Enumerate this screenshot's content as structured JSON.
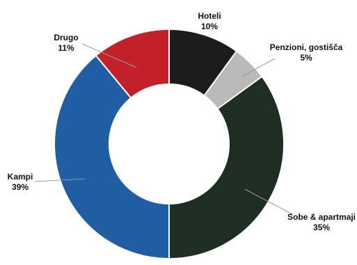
{
  "chart_data": {
    "type": "pie",
    "donut": true,
    "title": "",
    "legend": "none",
    "slices": [
      {
        "label": "Hoteli",
        "value": 10,
        "value_label": "10%",
        "color": "#1c1c1c"
      },
      {
        "label": "Penzioni, gostišča",
        "value": 5,
        "value_label": "5%",
        "color": "#b9b9b9"
      },
      {
        "label": "Sobe & apartmaji",
        "value": 35,
        "value_label": "35%",
        "color": "#1f2e22"
      },
      {
        "label": "Kampi",
        "value": 39,
        "value_label": "39%",
        "color": "#1f5ea3"
      },
      {
        "label": "Drugo",
        "value": 11,
        "value_label": "11%",
        "color": "#c4202a"
      }
    ]
  }
}
